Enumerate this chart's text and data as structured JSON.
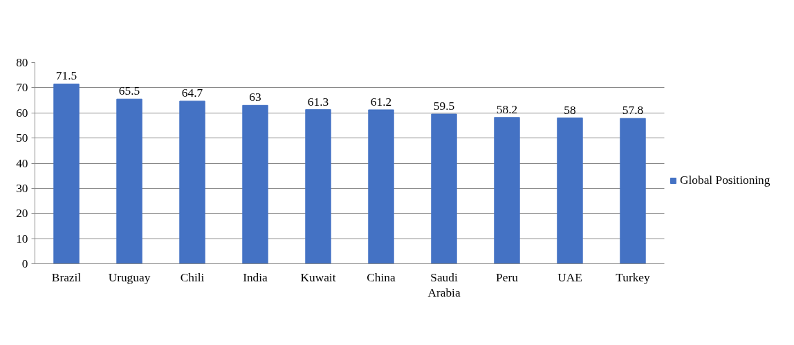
{
  "chart_data": {
    "type": "bar",
    "categories": [
      "Brazil",
      "Uruguay",
      "Chili",
      "India",
      "Kuwait",
      "China",
      "Saudi Arabia",
      "Peru",
      "UAE",
      "Turkey"
    ],
    "series": [
      {
        "name": "Global Positioning",
        "color": "#4472c4",
        "values": [
          71.5,
          65.5,
          64.7,
          63,
          61.3,
          61.2,
          59.5,
          58.2,
          58,
          57.8
        ]
      }
    ],
    "ylim": [
      0,
      80
    ],
    "yticks": [
      0,
      10,
      20,
      30,
      40,
      50,
      60,
      70,
      80
    ],
    "grid": "y",
    "legend": "right",
    "data_labels": true
  }
}
